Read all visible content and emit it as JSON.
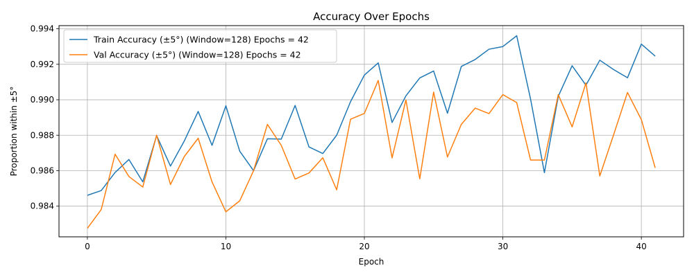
{
  "chart_data": {
    "type": "line",
    "title": "Accuracy Over Epochs",
    "xlabel": "Epoch",
    "ylabel": "Proportion within ±5°",
    "xlim": [
      -2.05,
      43.05
    ],
    "ylim": [
      0.98227,
      0.99418
    ],
    "xticks": [
      0,
      10,
      20,
      30,
      40
    ],
    "yticks": [
      0.984,
      0.986,
      0.988,
      0.99,
      0.992,
      0.994
    ],
    "grid": true,
    "legend": "top-left",
    "x": [
      0,
      1,
      2,
      3,
      4,
      5,
      6,
      7,
      8,
      9,
      10,
      11,
      12,
      13,
      14,
      15,
      16,
      17,
      18,
      19,
      20,
      21,
      22,
      23,
      24,
      25,
      26,
      27,
      28,
      29,
      30,
      31,
      32,
      33,
      34,
      35,
      36,
      37,
      38,
      39,
      40,
      41
    ],
    "series": [
      {
        "name": "Train Accuracy (±5°) (Window=128) Epochs = 42",
        "color": "#1f77b4",
        "values": [
          0.98461,
          0.98488,
          0.9859,
          0.98663,
          0.98537,
          0.98798,
          0.98626,
          0.98768,
          0.98934,
          0.98743,
          0.98966,
          0.9871,
          0.986,
          0.9878,
          0.98778,
          0.98968,
          0.98734,
          0.98697,
          0.988,
          0.98989,
          0.99139,
          0.99208,
          0.98872,
          0.99022,
          0.99123,
          0.99162,
          0.98924,
          0.99188,
          0.99227,
          0.99285,
          0.993,
          0.99361,
          0.99004,
          0.98589,
          0.99019,
          0.99192,
          0.99082,
          0.99223,
          0.9917,
          0.99124,
          0.99314,
          0.99246
        ]
      },
      {
        "name": "Val Accuracy (±5°) (Window=128) Epochs = 42",
        "color": "#ff7f0e",
        "values": [
          0.98275,
          0.98381,
          0.98693,
          0.98567,
          0.98508,
          0.988,
          0.98522,
          0.9868,
          0.98783,
          0.98537,
          0.98368,
          0.9843,
          0.986,
          0.98861,
          0.98743,
          0.98553,
          0.98587,
          0.98673,
          0.98492,
          0.9889,
          0.98923,
          0.99109,
          0.98672,
          0.98999,
          0.98554,
          0.99043,
          0.98677,
          0.98861,
          0.98953,
          0.98922,
          0.99029,
          0.98984,
          0.9866,
          0.9866,
          0.99029,
          0.98847,
          0.99095,
          0.9857,
          0.98803,
          0.99041,
          0.98888,
          0.98616
        ]
      }
    ]
  }
}
